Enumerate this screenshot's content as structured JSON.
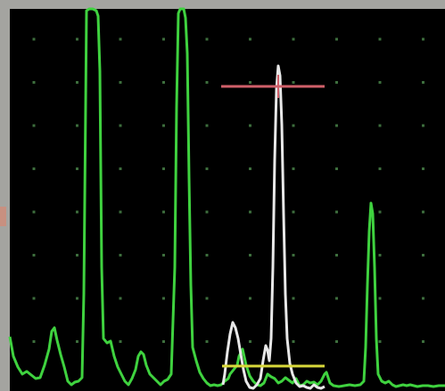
{
  "display": {
    "background": "#000000",
    "bezel": "#a4a4a0",
    "grid_dot_color": "#3d6e3d",
    "grid_columns": 10,
    "grid_rows": 8
  },
  "traces": {
    "main_signal": {
      "color": "#3fd23f",
      "label": ""
    },
    "gated_signal": {
      "color": "#e8e8e8",
      "label": ""
    }
  },
  "gates": {
    "peak_gate": {
      "color": "#d0606a"
    },
    "threshold_gate": {
      "color": "#d8d83a"
    }
  },
  "edge_marker": {
    "color": "#c89080"
  }
}
